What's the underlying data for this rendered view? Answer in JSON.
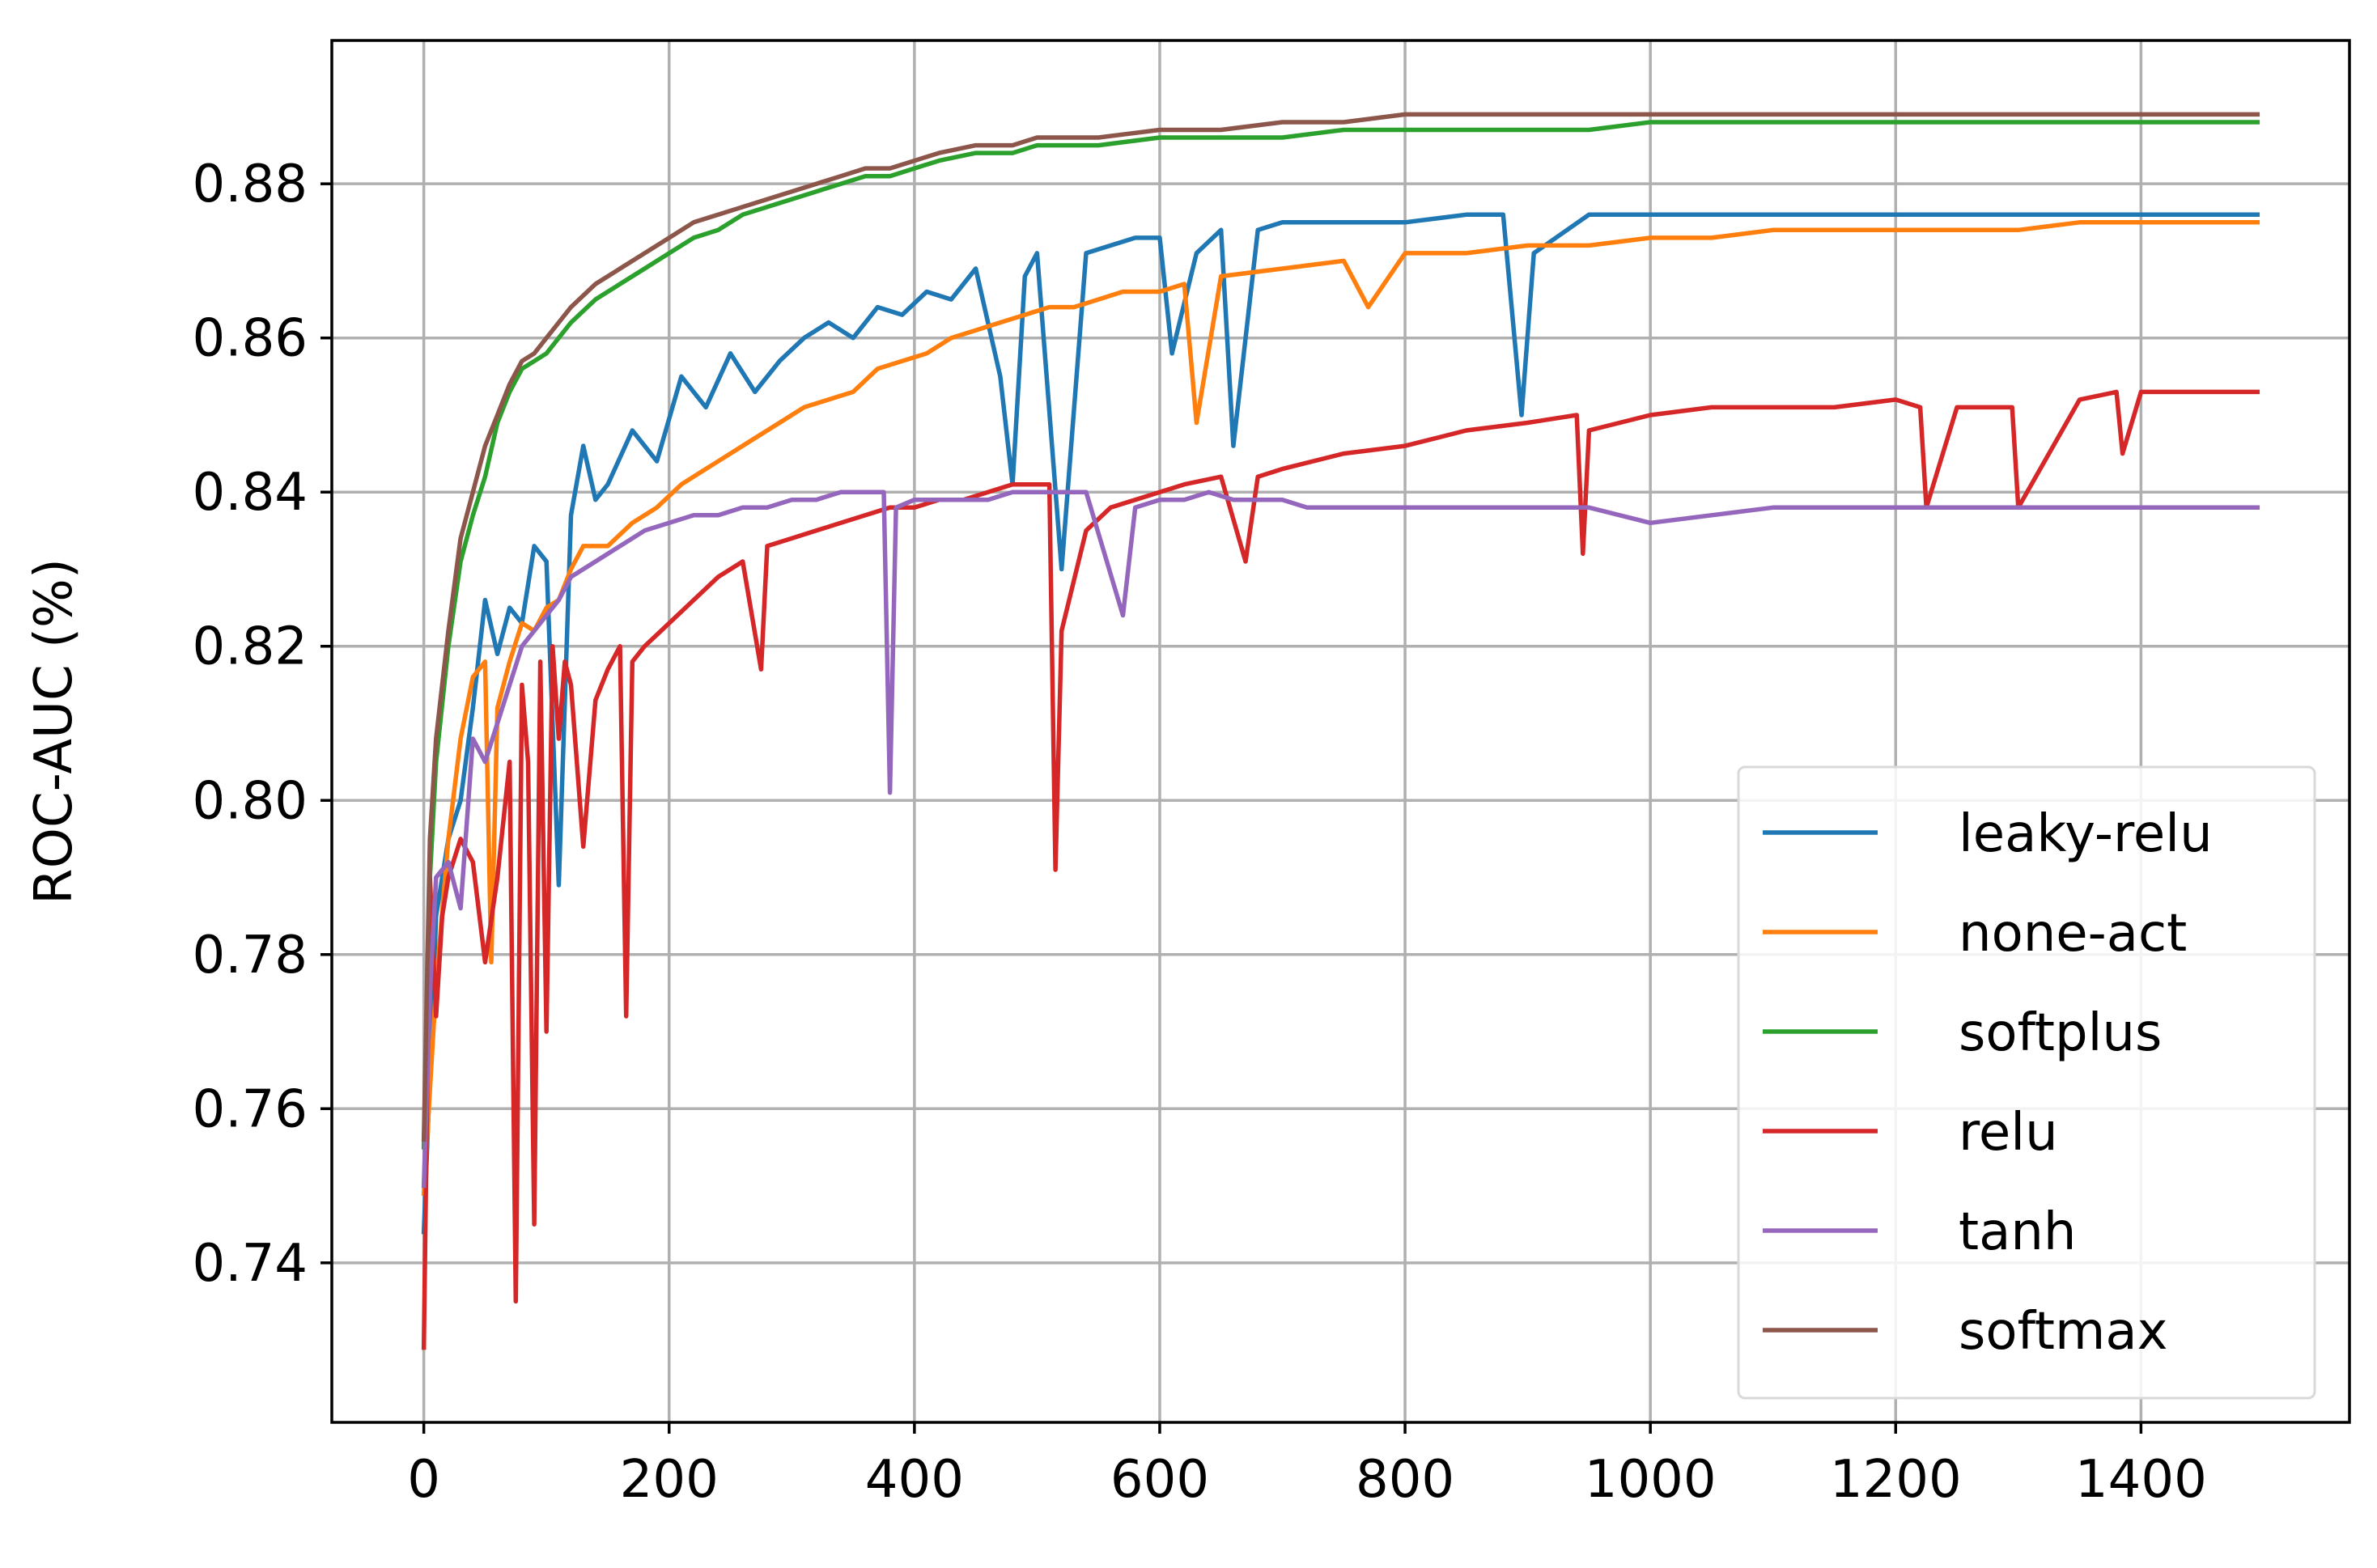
{
  "chart_data": {
    "type": "line",
    "title": "",
    "xlabel": "",
    "ylabel": "ROC-AUC (%)",
    "xlim": [
      -75,
      1570
    ],
    "ylim": [
      0.7193,
      0.8986
    ],
    "xticks": [
      0,
      200,
      400,
      600,
      800,
      1000,
      1200,
      1400
    ],
    "xtick_labels": [
      "0",
      "200",
      "400",
      "600",
      "800",
      "1000",
      "1200",
      "1400"
    ],
    "yticks": [
      0.74,
      0.76,
      0.78,
      0.8,
      0.82,
      0.84,
      0.86,
      0.88
    ],
    "ytick_labels": [
      "0.74",
      "0.76",
      "0.78",
      "0.80",
      "0.82",
      "0.84",
      "0.86",
      "0.88"
    ],
    "grid": true,
    "legend_position": "lower-right",
    "series": [
      {
        "name": "leaky-relu",
        "color": "#1f77b4",
        "x": [
          0,
          10,
          20,
          30,
          40,
          50,
          60,
          70,
          80,
          90,
          100,
          110,
          120,
          130,
          140,
          150,
          170,
          190,
          210,
          230,
          250,
          270,
          290,
          310,
          330,
          350,
          370,
          390,
          410,
          430,
          450,
          470,
          480,
          490,
          500,
          520,
          540,
          560,
          580,
          600,
          610,
          630,
          650,
          660,
          680,
          700,
          750,
          800,
          850,
          880,
          895,
          905,
          950,
          1000,
          1050,
          1100,
          1150,
          1200,
          1250,
          1300,
          1350,
          1400,
          1450,
          1495
        ],
        "y": [
          0.744,
          0.785,
          0.795,
          0.8,
          0.812,
          0.826,
          0.819,
          0.825,
          0.823,
          0.833,
          0.831,
          0.789,
          0.837,
          0.846,
          0.839,
          0.841,
          0.848,
          0.844,
          0.855,
          0.851,
          0.858,
          0.853,
          0.857,
          0.86,
          0.862,
          0.86,
          0.864,
          0.863,
          0.866,
          0.865,
          0.869,
          0.855,
          0.841,
          0.868,
          0.871,
          0.83,
          0.871,
          0.872,
          0.873,
          0.873,
          0.858,
          0.871,
          0.874,
          0.846,
          0.874,
          0.875,
          0.875,
          0.875,
          0.876,
          0.876,
          0.85,
          0.871,
          0.876,
          0.876,
          0.876,
          0.876,
          0.876,
          0.876,
          0.876,
          0.876,
          0.876,
          0.876,
          0.876,
          0.876
        ]
      },
      {
        "name": "none-act",
        "color": "#ff7f0e",
        "x": [
          0,
          10,
          20,
          30,
          40,
          50,
          55,
          60,
          70,
          80,
          90,
          100,
          110,
          120,
          130,
          150,
          170,
          190,
          210,
          230,
          250,
          270,
          290,
          310,
          330,
          350,
          370,
          390,
          410,
          430,
          450,
          470,
          490,
          510,
          530,
          550,
          570,
          600,
          620,
          630,
          650,
          700,
          750,
          770,
          800,
          850,
          900,
          950,
          1000,
          1050,
          1100,
          1150,
          1200,
          1250,
          1300,
          1350,
          1400,
          1450,
          1495
        ],
        "y": [
          0.749,
          0.776,
          0.795,
          0.808,
          0.816,
          0.818,
          0.779,
          0.812,
          0.818,
          0.823,
          0.822,
          0.825,
          0.826,
          0.83,
          0.833,
          0.833,
          0.836,
          0.838,
          0.841,
          0.843,
          0.845,
          0.847,
          0.849,
          0.851,
          0.852,
          0.853,
          0.856,
          0.857,
          0.858,
          0.86,
          0.861,
          0.862,
          0.863,
          0.864,
          0.864,
          0.865,
          0.866,
          0.866,
          0.867,
          0.849,
          0.868,
          0.869,
          0.87,
          0.864,
          0.871,
          0.871,
          0.872,
          0.872,
          0.873,
          0.873,
          0.874,
          0.874,
          0.874,
          0.874,
          0.874,
          0.875,
          0.875,
          0.875,
          0.875
        ]
      },
      {
        "name": "softplus",
        "color": "#2ca02c",
        "x": [
          0,
          5,
          10,
          20,
          30,
          40,
          50,
          60,
          70,
          80,
          90,
          100,
          120,
          140,
          160,
          180,
          200,
          220,
          240,
          260,
          280,
          300,
          320,
          340,
          360,
          380,
          400,
          420,
          450,
          480,
          500,
          550,
          600,
          650,
          700,
          750,
          800,
          850,
          900,
          950,
          1000,
          1100,
          1200,
          1300,
          1400,
          1495
        ],
        "y": [
          0.755,
          0.79,
          0.805,
          0.82,
          0.831,
          0.837,
          0.842,
          0.849,
          0.853,
          0.856,
          0.857,
          0.858,
          0.862,
          0.865,
          0.867,
          0.869,
          0.871,
          0.873,
          0.874,
          0.876,
          0.877,
          0.878,
          0.879,
          0.88,
          0.881,
          0.881,
          0.882,
          0.883,
          0.884,
          0.884,
          0.885,
          0.885,
          0.886,
          0.886,
          0.886,
          0.887,
          0.887,
          0.887,
          0.887,
          0.887,
          0.888,
          0.888,
          0.888,
          0.888,
          0.888,
          0.888
        ]
      },
      {
        "name": "relu",
        "color": "#d62728",
        "x": [
          0,
          5,
          10,
          15,
          20,
          30,
          40,
          50,
          60,
          70,
          75,
          80,
          85,
          90,
          95,
          100,
          105,
          110,
          115,
          120,
          130,
          140,
          150,
          160,
          165,
          170,
          180,
          200,
          220,
          240,
          260,
          275,
          280,
          300,
          320,
          340,
          360,
          380,
          400,
          420,
          440,
          460,
          480,
          500,
          510,
          515,
          520,
          540,
          560,
          580,
          600,
          620,
          650,
          670,
          680,
          700,
          750,
          800,
          850,
          900,
          940,
          945,
          950,
          1000,
          1050,
          1100,
          1150,
          1200,
          1220,
          1225,
          1250,
          1295,
          1300,
          1350,
          1380,
          1385,
          1400,
          1450,
          1495
        ],
        "y": [
          0.729,
          0.79,
          0.772,
          0.785,
          0.79,
          0.795,
          0.792,
          0.779,
          0.79,
          0.805,
          0.735,
          0.815,
          0.805,
          0.745,
          0.818,
          0.77,
          0.82,
          0.808,
          0.818,
          0.815,
          0.794,
          0.813,
          0.817,
          0.82,
          0.772,
          0.818,
          0.82,
          0.823,
          0.826,
          0.829,
          0.831,
          0.817,
          0.833,
          0.834,
          0.835,
          0.836,
          0.837,
          0.838,
          0.838,
          0.839,
          0.839,
          0.84,
          0.841,
          0.841,
          0.841,
          0.791,
          0.822,
          0.835,
          0.838,
          0.839,
          0.84,
          0.841,
          0.842,
          0.831,
          0.842,
          0.843,
          0.845,
          0.846,
          0.848,
          0.849,
          0.85,
          0.832,
          0.848,
          0.85,
          0.851,
          0.851,
          0.851,
          0.852,
          0.851,
          0.838,
          0.851,
          0.851,
          0.838,
          0.852,
          0.853,
          0.845,
          0.853,
          0.853,
          0.853
        ]
      },
      {
        "name": "tanh",
        "color": "#9467bd",
        "x": [
          0,
          5,
          10,
          20,
          30,
          40,
          50,
          60,
          70,
          80,
          90,
          100,
          110,
          120,
          140,
          160,
          180,
          200,
          220,
          240,
          260,
          280,
          300,
          320,
          340,
          360,
          375,
          380,
          385,
          400,
          420,
          440,
          460,
          480,
          500,
          520,
          540,
          570,
          580,
          600,
          620,
          640,
          660,
          680,
          700,
          720,
          740,
          760,
          780,
          800,
          850,
          900,
          950,
          1000,
          1050,
          1100,
          1150,
          1200,
          1250,
          1300,
          1350,
          1400,
          1450,
          1495
        ],
        "y": [
          0.75,
          0.775,
          0.79,
          0.792,
          0.786,
          0.808,
          0.805,
          0.81,
          0.815,
          0.82,
          0.822,
          0.824,
          0.826,
          0.829,
          0.831,
          0.833,
          0.835,
          0.836,
          0.837,
          0.837,
          0.838,
          0.838,
          0.839,
          0.839,
          0.84,
          0.84,
          0.84,
          0.801,
          0.838,
          0.839,
          0.839,
          0.839,
          0.839,
          0.84,
          0.84,
          0.84,
          0.84,
          0.824,
          0.838,
          0.839,
          0.839,
          0.84,
          0.839,
          0.839,
          0.839,
          0.838,
          0.838,
          0.838,
          0.838,
          0.838,
          0.838,
          0.838,
          0.838,
          0.836,
          0.837,
          0.838,
          0.838,
          0.838,
          0.838,
          0.838,
          0.838,
          0.838,
          0.838,
          0.838
        ]
      },
      {
        "name": "softmax",
        "color": "#8c564b",
        "x": [
          0,
          5,
          10,
          20,
          30,
          40,
          50,
          60,
          70,
          80,
          90,
          100,
          120,
          140,
          160,
          180,
          200,
          220,
          240,
          260,
          280,
          300,
          320,
          340,
          360,
          380,
          400,
          420,
          450,
          480,
          500,
          550,
          600,
          650,
          700,
          750,
          800,
          850,
          900,
          950,
          1000,
          1100,
          1200,
          1300,
          1400,
          1495
        ],
        "y": [
          0.756,
          0.795,
          0.808,
          0.822,
          0.834,
          0.84,
          0.846,
          0.85,
          0.854,
          0.857,
          0.858,
          0.86,
          0.864,
          0.867,
          0.869,
          0.871,
          0.873,
          0.875,
          0.876,
          0.877,
          0.878,
          0.879,
          0.88,
          0.881,
          0.882,
          0.882,
          0.883,
          0.884,
          0.885,
          0.885,
          0.886,
          0.886,
          0.887,
          0.887,
          0.888,
          0.888,
          0.889,
          0.889,
          0.889,
          0.889,
          0.889,
          0.889,
          0.889,
          0.889,
          0.889,
          0.889
        ]
      }
    ]
  }
}
